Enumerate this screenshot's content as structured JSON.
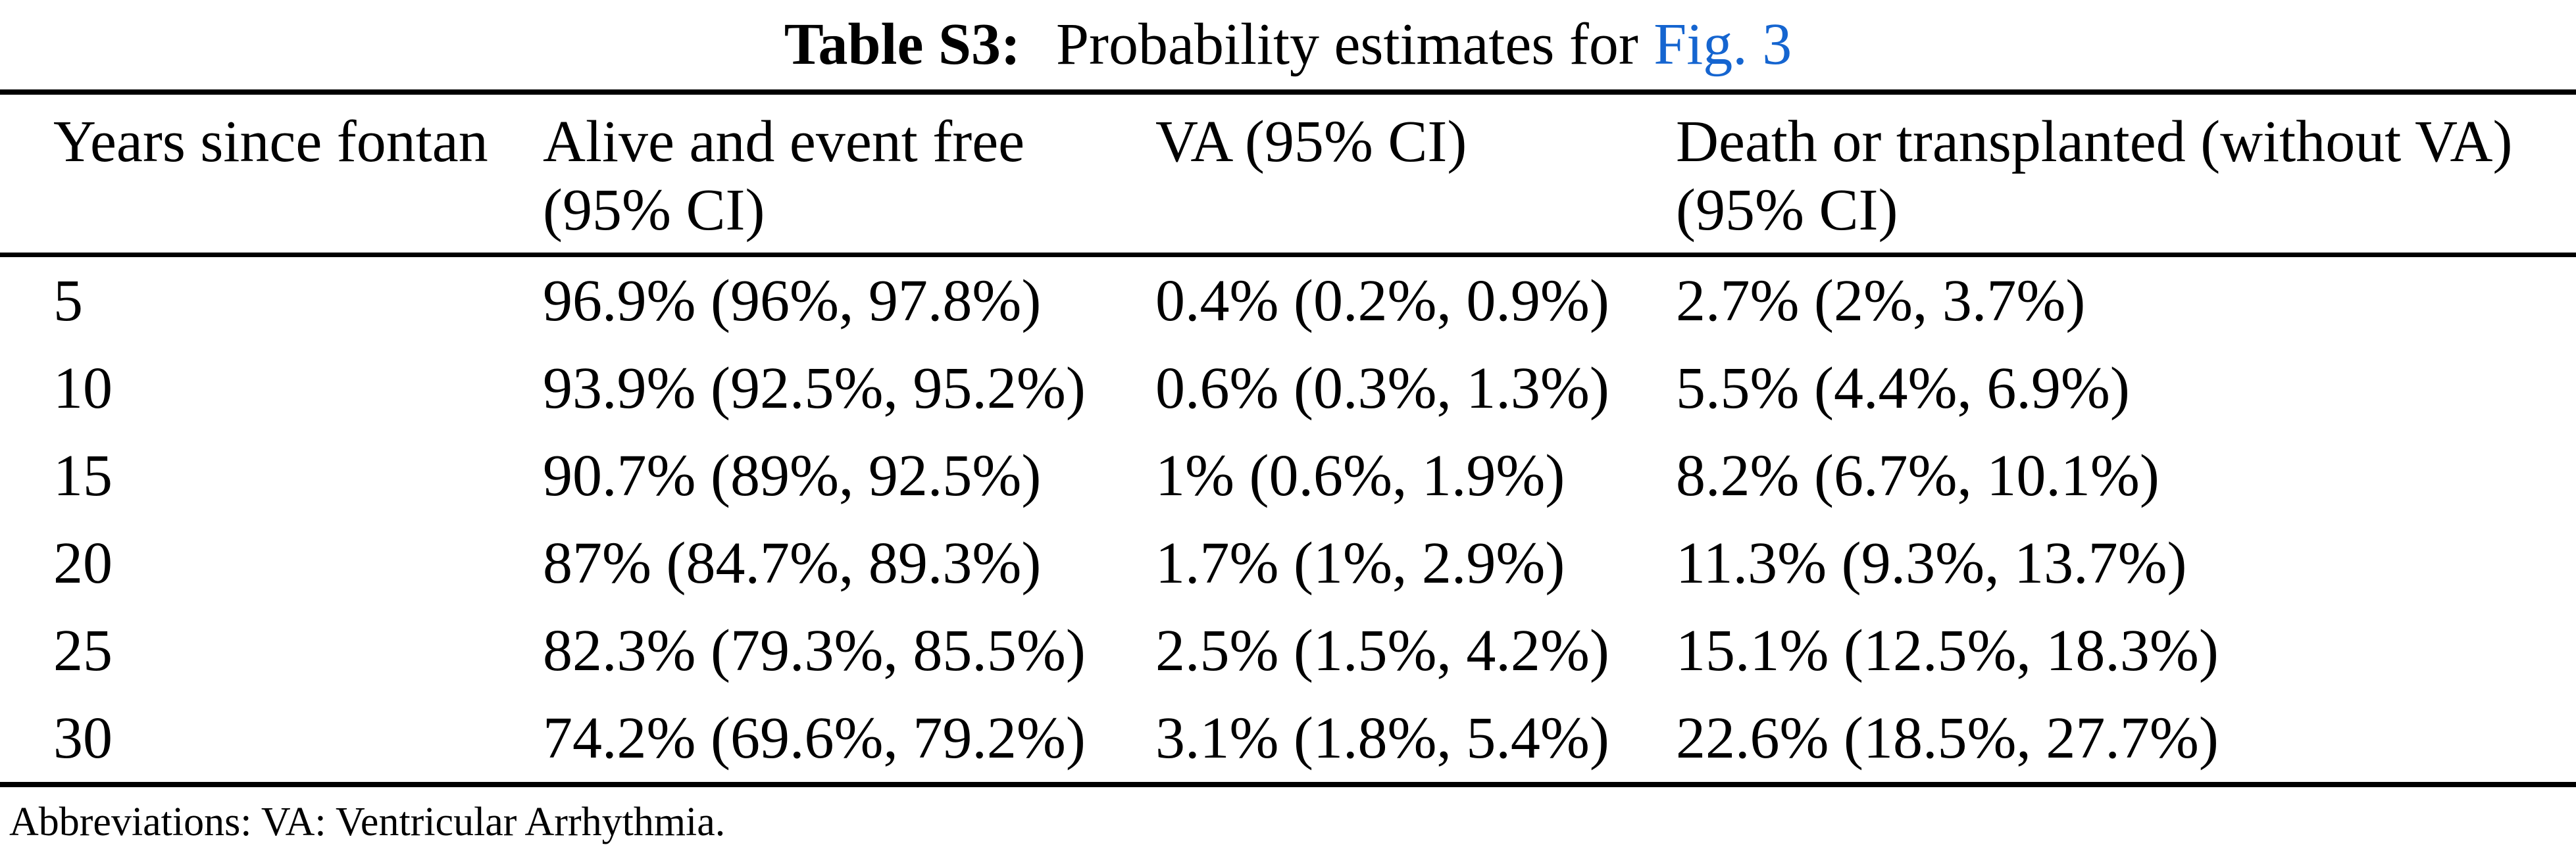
{
  "caption": {
    "label": "Table S3:",
    "text": "Probability estimates for",
    "link": "Fig. 3"
  },
  "colors": {
    "link_blue": "#1565d0",
    "text": "#000000",
    "background": "#ffffff"
  },
  "table": {
    "columns": [
      "Years since fontan",
      "Alive and event free\n(95% CI)",
      "VA (95% CI)",
      "Death or transplanted (without VA)\n(95% CI)"
    ],
    "rows": [
      [
        "5",
        "96.9% (96%, 97.8%)",
        "0.4% (0.2%, 0.9%)",
        "2.7% (2%, 3.7%)"
      ],
      [
        "10",
        "93.9% (92.5%, 95.2%)",
        "0.6% (0.3%, 1.3%)",
        "5.5% (4.4%, 6.9%)"
      ],
      [
        "15",
        "90.7% (89%, 92.5%)",
        "1% (0.6%, 1.9%)",
        "8.2% (6.7%, 10.1%)"
      ],
      [
        "20",
        "87% (84.7%, 89.3%)",
        "1.7% (1%, 2.9%)",
        "11.3% (9.3%, 13.7%)"
      ],
      [
        "25",
        "82.3% (79.3%, 85.5%)",
        "2.5% (1.5%, 4.2%)",
        "15.1% (12.5%, 18.3%)"
      ],
      [
        "30",
        "74.2% (69.6%, 79.2%)",
        "3.1% (1.8%, 5.4%)",
        "22.6% (18.5%, 27.7%)"
      ]
    ]
  },
  "footnote": "Abbreviations: VA: Ventricular Arrhythmia."
}
